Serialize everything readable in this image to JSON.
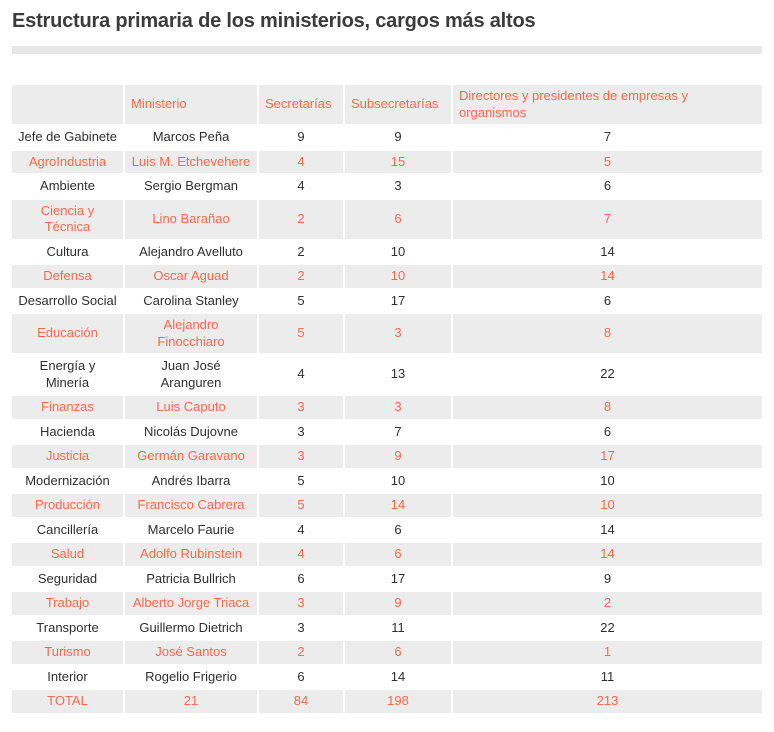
{
  "title": "Estructura primaria de los ministerios, cargos más altos",
  "colors": {
    "accent_orange": "#f5694c",
    "row_gray_bg": "#ececec",
    "text_dark": "#2f2f2f",
    "divider_gray": "#e7e7e7"
  },
  "chart_data": {
    "type": "table",
    "title": "Estructura primaria de los ministerios, cargos más altos",
    "columns": [
      "",
      "Ministerio",
      "Secretarías",
      "Subsecretarías",
      "Directores y presidentes de empresas y\norganismos"
    ],
    "rows": [
      [
        "Jefe de Gabinete",
        "Marcos Peña",
        "9",
        "9",
        "7"
      ],
      [
        "AgroIndustria",
        "Luis M. Etchevehere",
        "4",
        "15",
        "5"
      ],
      [
        "Ambiente",
        "Sergio Bergman",
        "4",
        "3",
        "6"
      ],
      [
        "Ciencia y\nTécnica",
        "Lino Barañao",
        "2",
        "6",
        "7"
      ],
      [
        "Cultura",
        "Alejandro Avelluto",
        "2",
        "10",
        "14"
      ],
      [
        "Defensa",
        "Oscar Aguad",
        "2",
        "10",
        "14"
      ],
      [
        "Desarrollo Social",
        "Carolina Stanley",
        "5",
        "17",
        "6"
      ],
      [
        "Educación",
        "Alejandro\nFinocchiaro",
        "5",
        "3",
        "8"
      ],
      [
        "Energía y\nMinería",
        "Juan José\nAranguren",
        "4",
        "13",
        "22"
      ],
      [
        "Finanzas",
        "Luis Caputo",
        "3",
        "3",
        "8"
      ],
      [
        "Hacienda",
        "Nicolás Dujovne",
        "3",
        "7",
        "6"
      ],
      [
        "Justicia",
        "Germán Garavano",
        "3",
        "9",
        "17"
      ],
      [
        "Modernización",
        "Andrés Ibarra",
        "5",
        "10",
        "10"
      ],
      [
        "Producción",
        "Francisco Cabrera",
        "5",
        "14",
        "10"
      ],
      [
        "Cancillería",
        "Marcelo Faurie",
        "4",
        "6",
        "14"
      ],
      [
        "Salud",
        "Adolfo Rubinstein",
        "4",
        "6",
        "14"
      ],
      [
        "Seguridad",
        "Patricia Bullrich",
        "6",
        "17",
        "9"
      ],
      [
        "Trabajo",
        "Alberto Jorge Triaca",
        "3",
        "9",
        "2"
      ],
      [
        "Transporte",
        "Guillermo Dietrich",
        "3",
        "11",
        "22"
      ],
      [
        "Turismo",
        "José Santos",
        "2",
        "6",
        "1"
      ],
      [
        "Interior",
        "Rogelio Frigerio",
        "6",
        "14",
        "11"
      ]
    ],
    "total_row": [
      "TOTAL",
      "21",
      "84",
      "198",
      "213"
    ],
    "layout_hints": {
      "highlight_pattern": "every second data row and the total row use gray background with orange text",
      "header_align": "left",
      "cell_align": "center"
    }
  }
}
